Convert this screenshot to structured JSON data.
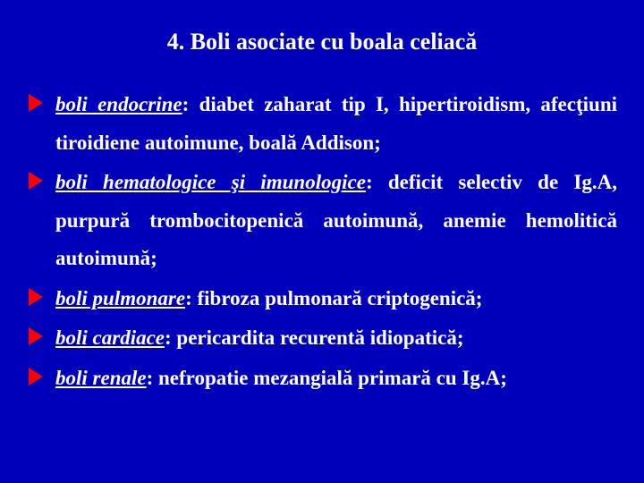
{
  "background_color": "#0000bb",
  "text_color": "#ffffff",
  "arrow_color": "#ff0000",
  "title_fontsize": 26,
  "body_fontsize": 23,
  "line_height": 1.85,
  "title": "4. Boli asociate cu boala celiacă",
  "items": [
    {
      "category": "boli endocrine",
      "desc": ": diabet zaharat tip I, hipertiroidism, afecţiuni tiroidiene autoimune, boală Addison;"
    },
    {
      "category": "boli hematologice şi imunologice",
      "desc": ": deficit selectiv de Ig.A, purpură trombocitopenică autoimună, anemie hemolitică autoimună;"
    },
    {
      "category": "boli pulmonare",
      "desc": ": fibroza pulmonară criptogenică;"
    },
    {
      "category": "boli cardiace",
      "desc": ": pericardita recurentă idiopatică;"
    },
    {
      "category": "boli renale",
      "desc": ": nefropatie mezangială primară cu Ig.A;"
    }
  ]
}
